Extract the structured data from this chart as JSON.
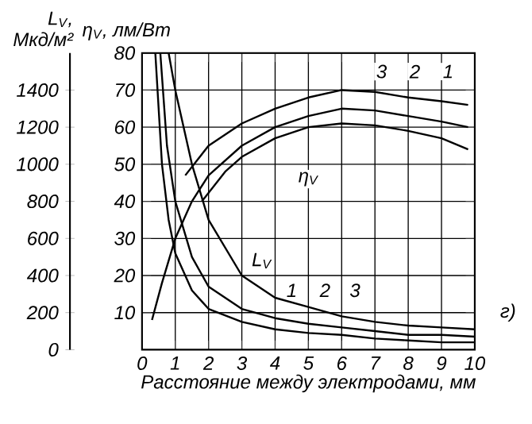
{
  "chart_data": {
    "type": "line",
    "ylabel": "η$_{V}$, лм/Вт",
    "y2label": "L$_{V}$, Мкд/м²",
    "xlabel": "Расстояние между электродами, мм",
    "xlim": [
      0,
      10
    ],
    "xticks": [
      0,
      1,
      2,
      3,
      4,
      5,
      6,
      7,
      8,
      9,
      10
    ],
    "ylim": [
      0,
      80
    ],
    "yticks": [
      10,
      20,
      30,
      40,
      50,
      60,
      70,
      80
    ],
    "y2lim": [
      0,
      1600
    ],
    "y2ticks": [
      0,
      200,
      400,
      600,
      800,
      1000,
      1200,
      1400
    ],
    "grid": true,
    "line_style": "solid",
    "marker": "none",
    "series": [
      {
        "color": "#000000",
        "x": [
          1.3,
          2,
          3,
          4,
          5,
          6,
          7,
          8,
          9,
          9.8
        ],
        "values": [
          47,
          55,
          61,
          65,
          68,
          70,
          69.5,
          68,
          67,
          66
        ]
      },
      {
        "color": "#000000",
        "x": [
          0.3,
          0.6,
          1,
          1.5,
          2,
          3,
          4,
          5,
          6,
          7,
          8,
          9,
          9.8
        ],
        "values": [
          8,
          18,
          30,
          40,
          47,
          55,
          60,
          63,
          65,
          64.5,
          63,
          61.5,
          60
        ]
      },
      {
        "color": "#000000",
        "x": [
          1.8,
          2.5,
          3,
          4,
          5,
          6,
          7,
          8,
          9,
          9.8
        ],
        "values": [
          40,
          48,
          52,
          57,
          60,
          61,
          60.5,
          59,
          57,
          54
        ]
      },
      {
        "color": "#000000",
        "axis": "y2",
        "x": [
          0.8,
          1,
          1.5,
          2,
          3,
          4,
          5,
          6,
          7,
          8,
          9,
          10
        ],
        "values": [
          1600,
          1400,
          1000,
          700,
          400,
          280,
          230,
          180,
          150,
          130,
          120,
          110
        ]
      },
      {
        "color": "#000000",
        "axis": "y2",
        "x": [
          0.55,
          0.75,
          1,
          1.5,
          2,
          3,
          4,
          5,
          6,
          7,
          8,
          9,
          10
        ],
        "values": [
          1600,
          1100,
          800,
          500,
          340,
          220,
          170,
          140,
          120,
          100,
          80,
          80,
          70
        ]
      },
      {
        "color": "#000000",
        "axis": "y2",
        "x": [
          0.4,
          0.6,
          0.8,
          1,
          1.5,
          2,
          3,
          4,
          5,
          6,
          7,
          8,
          9,
          10
        ],
        "values": [
          1600,
          1000,
          700,
          520,
          320,
          220,
          150,
          110,
          90,
          80,
          60,
          50,
          40,
          40
        ]
      }
    ],
    "annotations": [
      "3",
      "2",
      "1",
      "η$_{V}$",
      "1",
      "2",
      "3",
      "L$_{V}$",
      "г)"
    ]
  }
}
